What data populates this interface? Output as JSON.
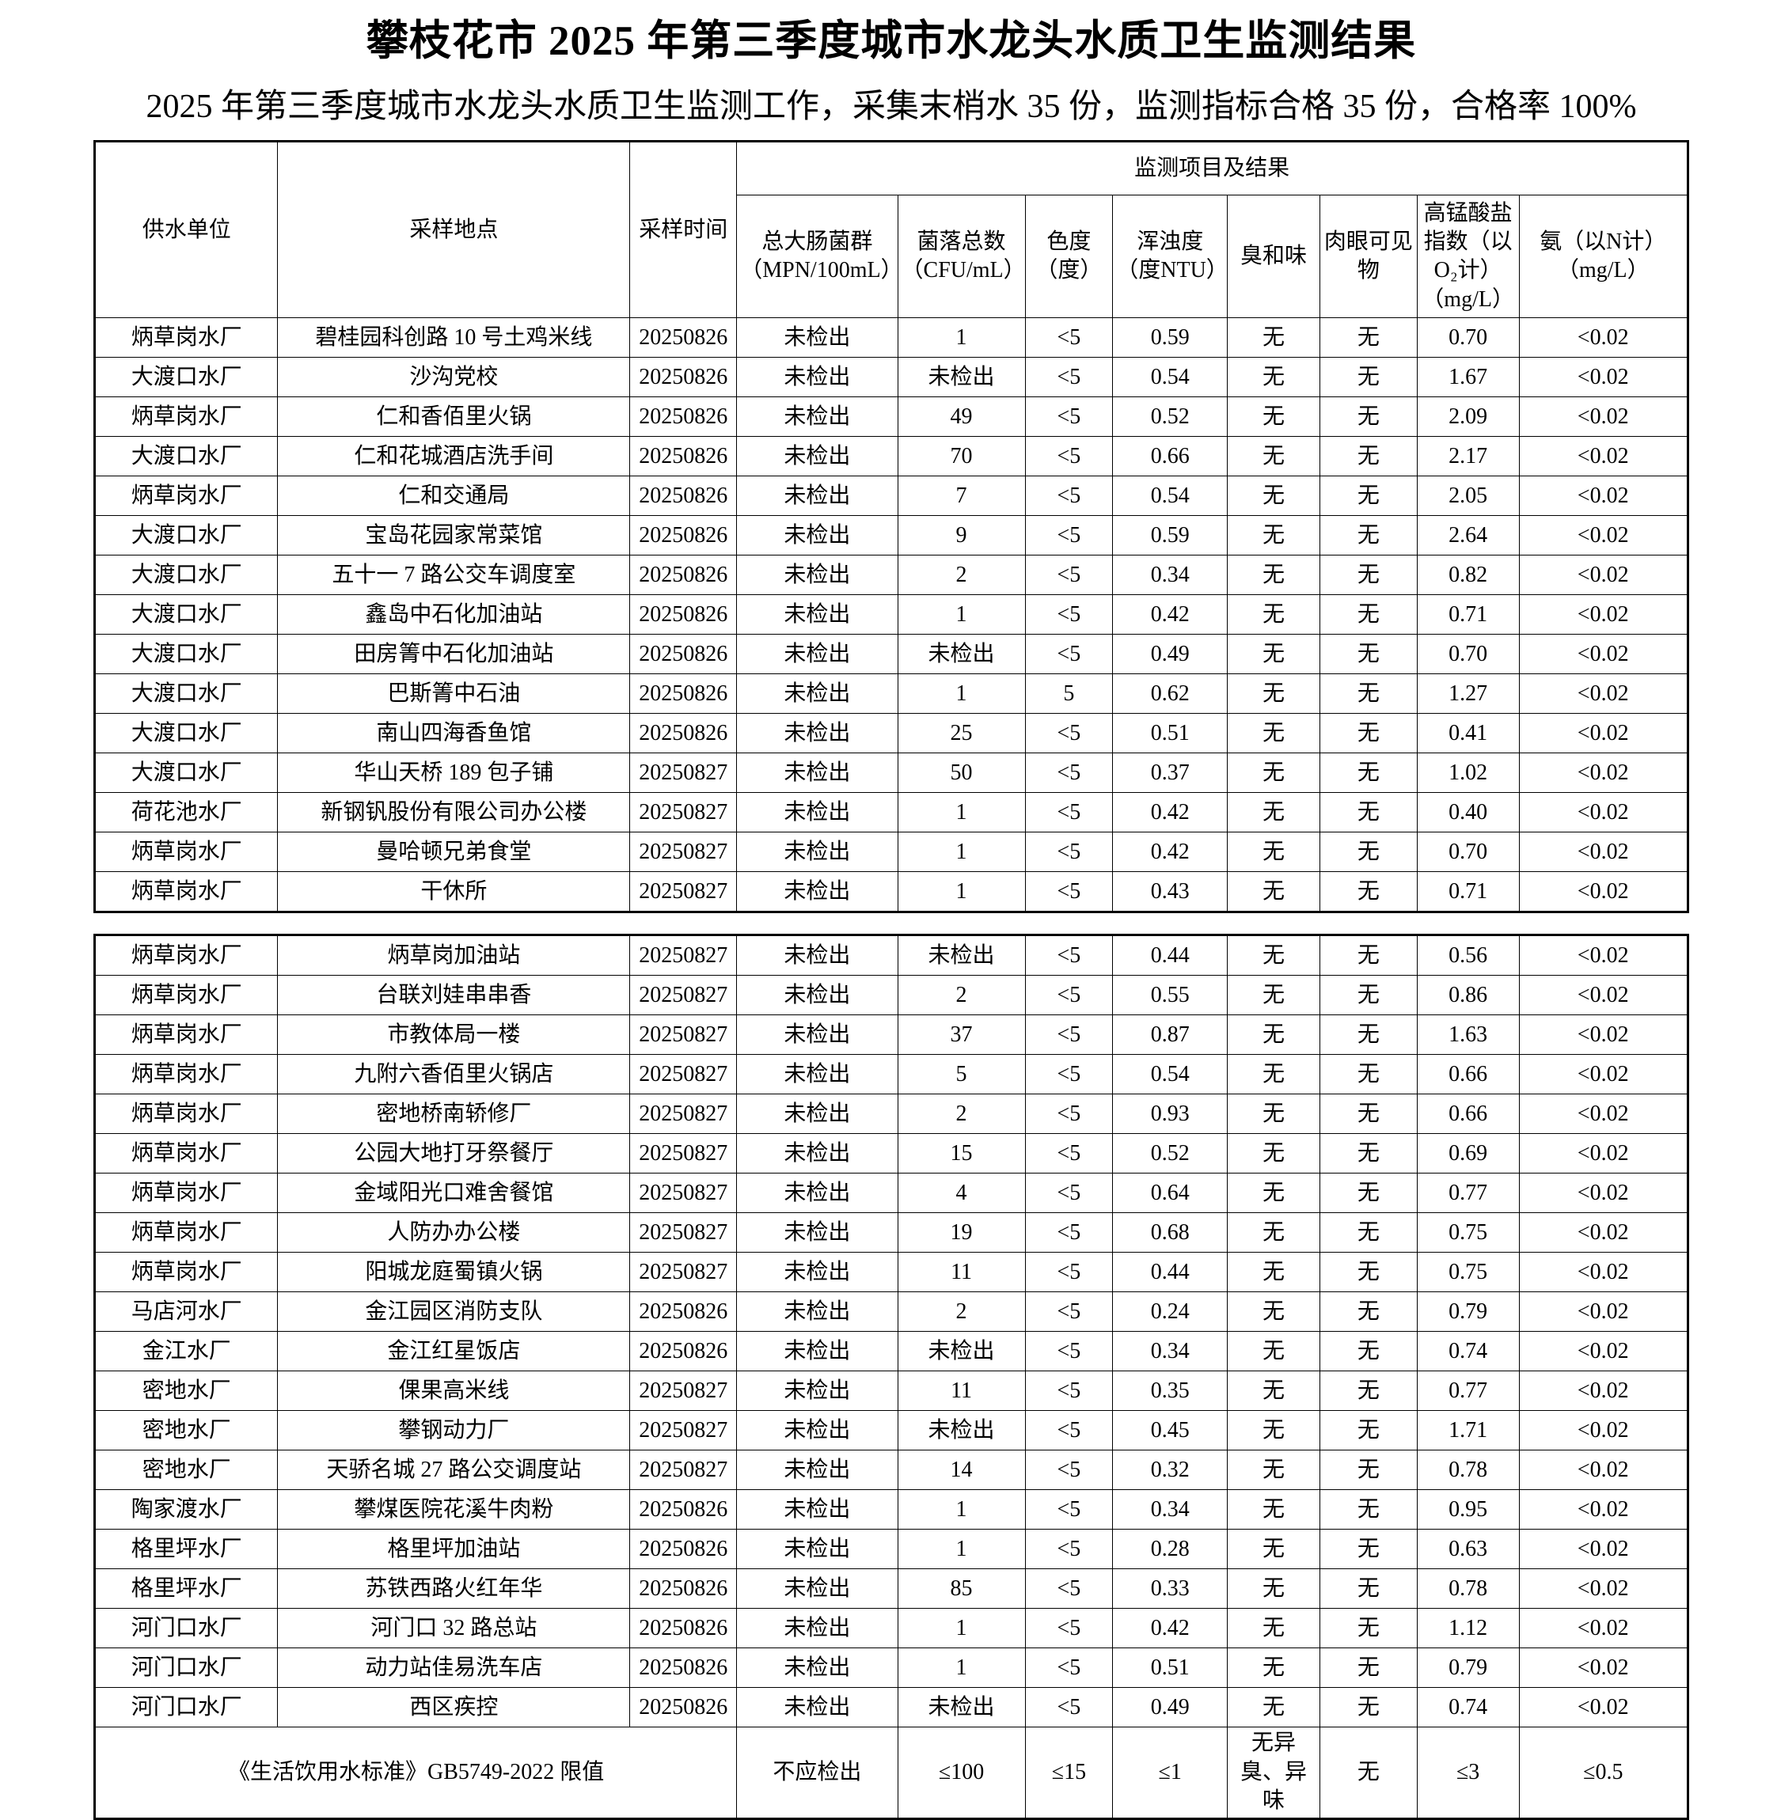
{
  "page": {
    "title": "攀枝花市 2025 年第三季度城市水龙头水质卫生监测结果",
    "subtitle": "2025 年第三季度城市水龙头水质卫生监测工作，采集末梢水 35 份，监测指标合格 35 份，合格率 100%"
  },
  "table": {
    "group_header": "监测项目及结果",
    "columns": [
      "供水单位",
      "采样地点",
      "采样时间",
      "总大肠菌群（MPN/100mL）",
      "菌落总数（CFU/mL）",
      "色度（度）",
      "浑浊度（度NTU）",
      "臭和味",
      "肉眼可见物",
      "高锰酸盐指数（以O₂计）（mg/L）",
      "氨（以N计）（mg/L）"
    ],
    "rows_block1": [
      [
        "炳草岗水厂",
        "碧桂园科创路 10 号土鸡米线",
        "20250826",
        "未检出",
        "1",
        "<5",
        "0.59",
        "无",
        "无",
        "0.70",
        "<0.02"
      ],
      [
        "大渡口水厂",
        "沙沟党校",
        "20250826",
        "未检出",
        "未检出",
        "<5",
        "0.54",
        "无",
        "无",
        "1.67",
        "<0.02"
      ],
      [
        "炳草岗水厂",
        "仁和香佰里火锅",
        "20250826",
        "未检出",
        "49",
        "<5",
        "0.52",
        "无",
        "无",
        "2.09",
        "<0.02"
      ],
      [
        "大渡口水厂",
        "仁和花城酒店洗手间",
        "20250826",
        "未检出",
        "70",
        "<5",
        "0.66",
        "无",
        "无",
        "2.17",
        "<0.02"
      ],
      [
        "炳草岗水厂",
        "仁和交通局",
        "20250826",
        "未检出",
        "7",
        "<5",
        "0.54",
        "无",
        "无",
        "2.05",
        "<0.02"
      ],
      [
        "大渡口水厂",
        "宝岛花园家常菜馆",
        "20250826",
        "未检出",
        "9",
        "<5",
        "0.59",
        "无",
        "无",
        "2.64",
        "<0.02"
      ],
      [
        "大渡口水厂",
        "五十一 7 路公交车调度室",
        "20250826",
        "未检出",
        "2",
        "<5",
        "0.34",
        "无",
        "无",
        "0.82",
        "<0.02"
      ],
      [
        "大渡口水厂",
        "鑫岛中石化加油站",
        "20250826",
        "未检出",
        "1",
        "<5",
        "0.42",
        "无",
        "无",
        "0.71",
        "<0.02"
      ],
      [
        "大渡口水厂",
        "田房箐中石化加油站",
        "20250826",
        "未检出",
        "未检出",
        "<5",
        "0.49",
        "无",
        "无",
        "0.70",
        "<0.02"
      ],
      [
        "大渡口水厂",
        "巴斯箐中石油",
        "20250826",
        "未检出",
        "1",
        "5",
        "0.62",
        "无",
        "无",
        "1.27",
        "<0.02"
      ],
      [
        "大渡口水厂",
        "南山四海香鱼馆",
        "20250826",
        "未检出",
        "25",
        "<5",
        "0.51",
        "无",
        "无",
        "0.41",
        "<0.02"
      ],
      [
        "大渡口水厂",
        "华山天桥 189 包子铺",
        "20250827",
        "未检出",
        "50",
        "<5",
        "0.37",
        "无",
        "无",
        "1.02",
        "<0.02"
      ],
      [
        "荷花池水厂",
        "新钢钒股份有限公司办公楼",
        "20250827",
        "未检出",
        "1",
        "<5",
        "0.42",
        "无",
        "无",
        "0.40",
        "<0.02"
      ],
      [
        "炳草岗水厂",
        "曼哈顿兄弟食堂",
        "20250827",
        "未检出",
        "1",
        "<5",
        "0.42",
        "无",
        "无",
        "0.70",
        "<0.02"
      ],
      [
        "炳草岗水厂",
        "干休所",
        "20250827",
        "未检出",
        "1",
        "<5",
        "0.43",
        "无",
        "无",
        "0.71",
        "<0.02"
      ]
    ],
    "rows_block2": [
      [
        "炳草岗水厂",
        "炳草岗加油站",
        "20250827",
        "未检出",
        "未检出",
        "<5",
        "0.44",
        "无",
        "无",
        "0.56",
        "<0.02"
      ],
      [
        "炳草岗水厂",
        "台联刘娃串串香",
        "20250827",
        "未检出",
        "2",
        "<5",
        "0.55",
        "无",
        "无",
        "0.86",
        "<0.02"
      ],
      [
        "炳草岗水厂",
        "市教体局一楼",
        "20250827",
        "未检出",
        "37",
        "<5",
        "0.87",
        "无",
        "无",
        "1.63",
        "<0.02"
      ],
      [
        "炳草岗水厂",
        "九附六香佰里火锅店",
        "20250827",
        "未检出",
        "5",
        "<5",
        "0.54",
        "无",
        "无",
        "0.66",
        "<0.02"
      ],
      [
        "炳草岗水厂",
        "密地桥南轿修厂",
        "20250827",
        "未检出",
        "2",
        "<5",
        "0.93",
        "无",
        "无",
        "0.66",
        "<0.02"
      ],
      [
        "炳草岗水厂",
        "公园大地打牙祭餐厅",
        "20250827",
        "未检出",
        "15",
        "<5",
        "0.52",
        "无",
        "无",
        "0.69",
        "<0.02"
      ],
      [
        "炳草岗水厂",
        "金域阳光口难舍餐馆",
        "20250827",
        "未检出",
        "4",
        "<5",
        "0.64",
        "无",
        "无",
        "0.77",
        "<0.02"
      ],
      [
        "炳草岗水厂",
        "人防办办公楼",
        "20250827",
        "未检出",
        "19",
        "<5",
        "0.68",
        "无",
        "无",
        "0.75",
        "<0.02"
      ],
      [
        "炳草岗水厂",
        "阳城龙庭蜀镇火锅",
        "20250827",
        "未检出",
        "11",
        "<5",
        "0.44",
        "无",
        "无",
        "0.75",
        "<0.02"
      ],
      [
        "马店河水厂",
        "金江园区消防支队",
        "20250826",
        "未检出",
        "2",
        "<5",
        "0.24",
        "无",
        "无",
        "0.79",
        "<0.02"
      ],
      [
        "金江水厂",
        "金江红星饭店",
        "20250826",
        "未检出",
        "未检出",
        "<5",
        "0.34",
        "无",
        "无",
        "0.74",
        "<0.02"
      ],
      [
        "密地水厂",
        "倮果高米线",
        "20250827",
        "未检出",
        "11",
        "<5",
        "0.35",
        "无",
        "无",
        "0.77",
        "<0.02"
      ],
      [
        "密地水厂",
        "攀钢动力厂",
        "20250827",
        "未检出",
        "未检出",
        "<5",
        "0.45",
        "无",
        "无",
        "1.71",
        "<0.02"
      ],
      [
        "密地水厂",
        "天骄名城 27 路公交调度站",
        "20250827",
        "未检出",
        "14",
        "<5",
        "0.32",
        "无",
        "无",
        "0.78",
        "<0.02"
      ],
      [
        "陶家渡水厂",
        "攀煤医院花溪牛肉粉",
        "20250826",
        "未检出",
        "1",
        "<5",
        "0.34",
        "无",
        "无",
        "0.95",
        "<0.02"
      ],
      [
        "格里坪水厂",
        "格里坪加油站",
        "20250826",
        "未检出",
        "1",
        "<5",
        "0.28",
        "无",
        "无",
        "0.63",
        "<0.02"
      ],
      [
        "格里坪水厂",
        "苏铁西路火红年华",
        "20250826",
        "未检出",
        "85",
        "<5",
        "0.33",
        "无",
        "无",
        "0.78",
        "<0.02"
      ],
      [
        "河门口水厂",
        "河门口 32 路总站",
        "20250826",
        "未检出",
        "1",
        "<5",
        "0.42",
        "无",
        "无",
        "1.12",
        "<0.02"
      ],
      [
        "河门口水厂",
        "动力站佳易洗车店",
        "20250826",
        "未检出",
        "1",
        "<5",
        "0.51",
        "无",
        "无",
        "0.79",
        "<0.02"
      ],
      [
        "河门口水厂",
        "西区疾控",
        "20250826",
        "未检出",
        "未检出",
        "<5",
        "0.49",
        "无",
        "无",
        "0.74",
        "<0.02"
      ]
    ],
    "limit_row": {
      "label": "《生活饮用水标准》GB5749-2022 限值",
      "values": [
        "不应检出",
        "≤100",
        "≤15",
        "≤1",
        "无异臭、异味",
        "无",
        "≤3",
        "≤0.5"
      ]
    }
  }
}
